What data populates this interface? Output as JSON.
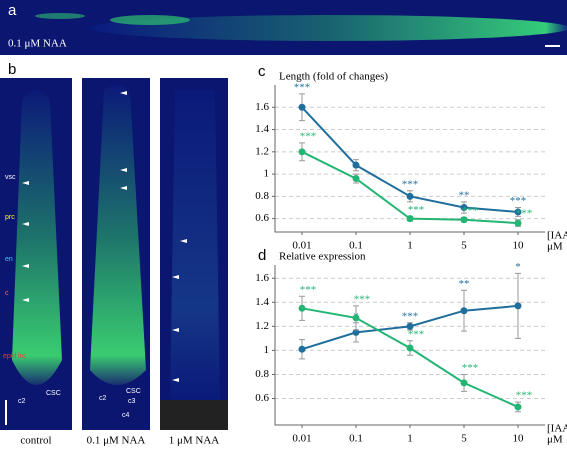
{
  "panel_labels": {
    "a": "a",
    "b": "b",
    "c": "c",
    "d": "d"
  },
  "image_a": {
    "caption": "0.1 μM NAA"
  },
  "images_b": [
    {
      "caption": "control",
      "annotations": [
        "vsc",
        "prc",
        "en",
        "c",
        "epid lrc",
        "c2",
        "CSC"
      ]
    },
    {
      "caption": "0.1 μM NAA",
      "annotations": [
        "c2",
        "CSC",
        "c3",
        "c4"
      ]
    },
    {
      "caption": "1 μM NAA"
    }
  ],
  "chart_data": [
    {
      "type": "line",
      "y_label": "Length (fold of changes)",
      "x_label": [
        "[IAA],",
        "μM"
      ],
      "categories": [
        "0.01",
        "0.1",
        "1",
        "5",
        "10"
      ],
      "ylim": [
        0.48,
        1.8
      ],
      "yticks": [
        0.6,
        0.8,
        1,
        1.2,
        1.4,
        1.6
      ],
      "grid": true,
      "series": [
        {
          "color": "#1f6e9c",
          "values": [
            1.6,
            1.08,
            0.8,
            0.7,
            0.66
          ],
          "errors": [
            0.12,
            0.05,
            0.05,
            0.05,
            0.04
          ],
          "significance": [
            "***",
            null,
            "***",
            "**",
            "***"
          ]
        },
        {
          "color": "#22b573",
          "values": [
            1.2,
            0.96,
            0.6,
            0.59,
            0.56
          ],
          "errors": [
            0.08,
            0.04,
            0.02,
            0.02,
            0.03
          ],
          "significance": [
            "***",
            null,
            "***",
            "***",
            "***"
          ]
        }
      ]
    },
    {
      "type": "line",
      "y_label": "Relative expression",
      "x_label": [
        "[IAA],",
        "μM"
      ],
      "categories": [
        "0.01",
        "0.1",
        "1",
        "5",
        "10"
      ],
      "ylim": [
        0.38,
        1.71
      ],
      "yticks": [
        0.6,
        0.8,
        1,
        1.2,
        1.4,
        1.6
      ],
      "grid": true,
      "series": [
        {
          "color": "#1f6e9c",
          "values": [
            1.01,
            1.15,
            1.2,
            1.33,
            1.37
          ],
          "errors": [
            0.08,
            0.08,
            0.03,
            0.17,
            0.27
          ],
          "significance": [
            null,
            "*",
            "***",
            "**",
            "*"
          ]
        },
        {
          "color": "#22b573",
          "values": [
            1.35,
            1.27,
            1.02,
            0.73,
            0.53
          ],
          "errors": [
            0.1,
            0.1,
            0.06,
            0.07,
            0.04
          ],
          "significance": [
            "***",
            "***",
            "***",
            "***",
            "***"
          ]
        }
      ]
    }
  ]
}
